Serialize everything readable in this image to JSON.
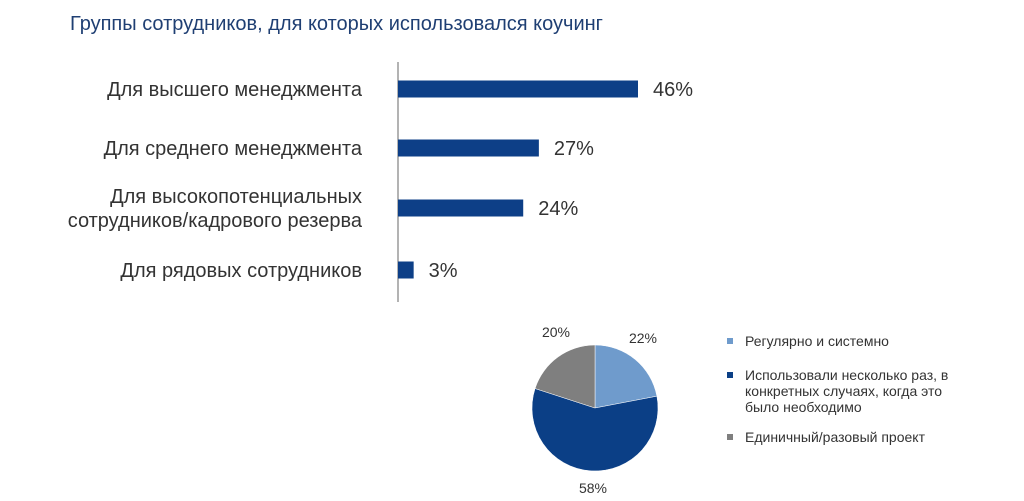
{
  "chart_data": [
    {
      "type": "bar",
      "orientation": "horizontal",
      "title": "Группы сотрудников, для которых использовался коучинг",
      "categories": [
        [
          "Для высшего менеджмента"
        ],
        [
          "Для среднего менеджмента"
        ],
        [
          "Для высокопотенциальных",
          "сотрудников/кадрового резерва"
        ],
        [
          "Для рядовых сотрудников"
        ]
      ],
      "values": [
        46,
        27,
        24,
        3
      ],
      "value_labels": [
        "46%",
        "27%",
        "24%",
        "3%"
      ],
      "unit": "%",
      "xlim": [
        0,
        50
      ],
      "grid": false,
      "color": "#0d3f87"
    },
    {
      "type": "pie",
      "slices": [
        {
          "label": "Регулярно и системно",
          "value": 22,
          "value_label": "22%",
          "color": "#6f9bcc"
        },
        {
          "label": "Использовали несколько раз, в конкретных случаях, когда это было необходимо",
          "label_lines": [
            "Использовали несколько раз, в",
            "конкретных случаях, когда это",
            "было необходимо"
          ],
          "value": 58,
          "value_label": "58%",
          "color": "#0b3f86"
        },
        {
          "label": "Единичный/разовый проект",
          "value": 20,
          "value_label": "20%",
          "color": "#7f7f7f"
        }
      ],
      "legend_position": "right"
    }
  ]
}
